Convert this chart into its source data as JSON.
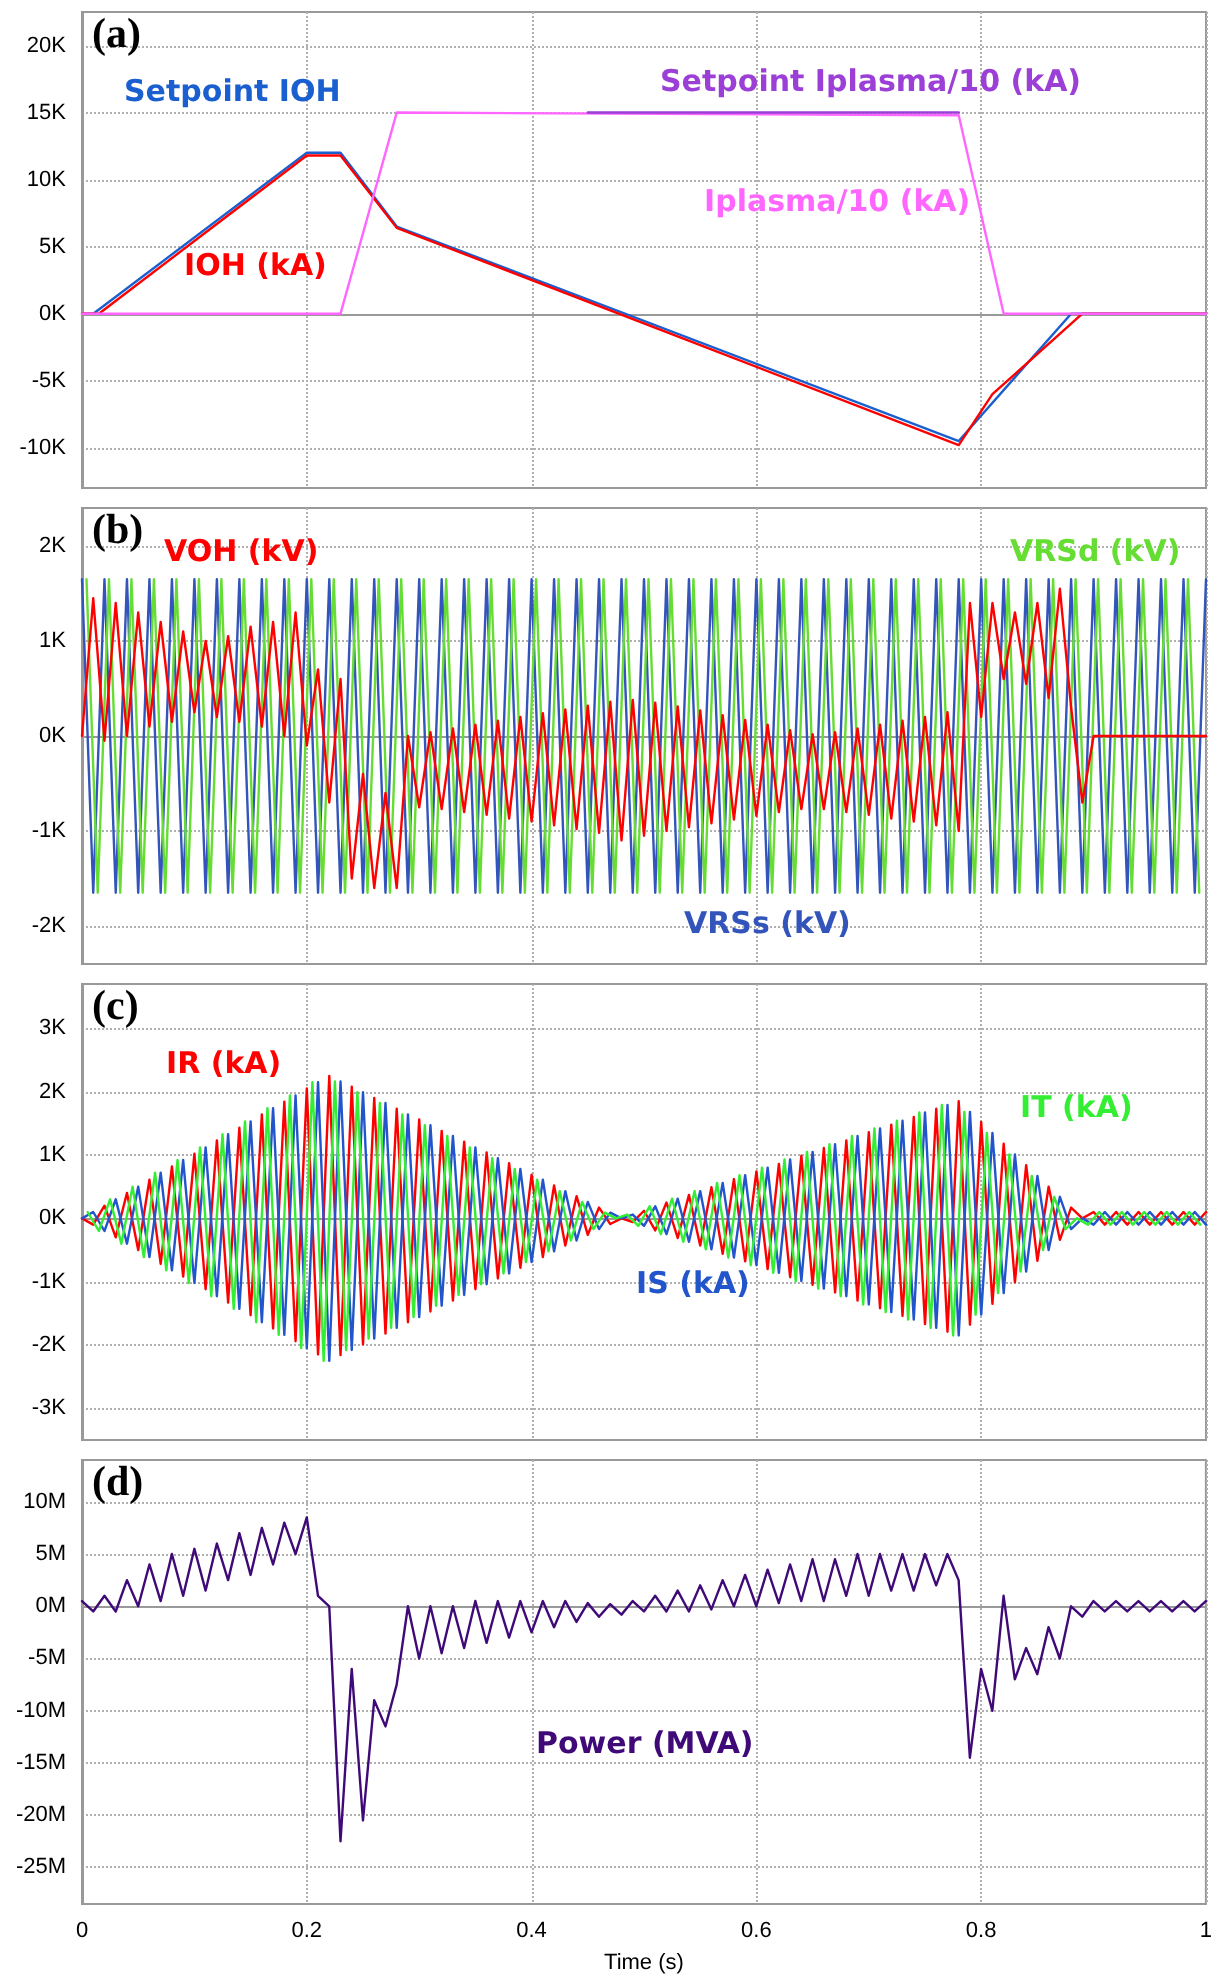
{
  "chart_data": [
    {
      "type": "line",
      "title": "(a)",
      "tick_labels": "y",
      "grid": true,
      "xlim": [
        0,
        1
      ],
      "xticks": [
        0,
        0.2,
        0.4,
        0.6,
        0.8,
        1
      ],
      "ylim": [
        -13000,
        22500
      ],
      "yticks": [
        {
          "value": -10000,
          "label": "-10K"
        },
        {
          "value": -5000,
          "label": "-5K"
        },
        {
          "value": 0,
          "label": "0K"
        },
        {
          "value": 5000,
          "label": "5K"
        },
        {
          "value": 10000,
          "label": "10K"
        },
        {
          "value": 15000,
          "label": "15K"
        },
        {
          "value": 20000,
          "label": "20K"
        }
      ],
      "series": [
        {
          "name": "Setpoint IOH",
          "color": "#1a5fd0",
          "x": [
            0,
            0.01,
            0.2,
            0.23,
            0.28,
            0.78,
            0.88,
            1
          ],
          "values": [
            0,
            0,
            12000,
            12000,
            6500,
            -9500,
            0,
            0
          ]
        },
        {
          "name": "IOH (kA)",
          "color": "#ff0000",
          "x": [
            0,
            0.015,
            0.2,
            0.23,
            0.28,
            0.78,
            0.81,
            0.89,
            1
          ],
          "values": [
            0,
            0,
            11800,
            11800,
            6400,
            -9800,
            -6000,
            0,
            0
          ]
        },
        {
          "name": "Iplasma/10 (kA)",
          "color": "#ff66ff",
          "x": [
            0,
            0.23,
            0.28,
            0.78,
            0.82,
            1
          ],
          "values": [
            0,
            0,
            15000,
            14800,
            0,
            0
          ]
        },
        {
          "name": "Setpoint Iplasma/10 (kA)",
          "color": "#9b3fd6",
          "x": [
            0.45,
            0.78
          ],
          "values": [
            15000,
            15000
          ]
        }
      ]
    },
    {
      "type": "line",
      "title": "(b)",
      "tick_labels": "y",
      "grid": true,
      "xlim": [
        0,
        1
      ],
      "xticks": [
        0,
        0.2,
        0.4,
        0.6,
        0.8,
        1
      ],
      "ylim": [
        -2400,
        2400
      ],
      "yticks": [
        {
          "value": -2000,
          "label": "-2K"
        },
        {
          "value": -1000,
          "label": "-1K"
        },
        {
          "value": 0,
          "label": "0K"
        },
        {
          "value": 1000,
          "label": "1K"
        },
        {
          "value": 2000,
          "label": "2K"
        }
      ],
      "x": [
        0,
        0.01,
        0.02,
        0.03,
        0.04,
        0.05,
        0.06,
        0.07,
        0.08,
        0.09,
        0.1,
        0.11,
        0.12,
        0.13,
        0.14,
        0.15,
        0.16,
        0.17,
        0.18,
        0.19,
        0.2,
        0.21,
        0.22,
        0.23,
        0.24,
        0.25,
        0.26,
        0.27,
        0.28,
        0.29,
        0.3,
        0.31,
        0.32,
        0.33,
        0.34,
        0.35,
        0.36,
        0.37,
        0.38,
        0.39,
        0.4,
        0.41,
        0.42,
        0.43,
        0.44,
        0.45,
        0.46,
        0.47,
        0.48,
        0.49,
        0.5,
        0.51,
        0.52,
        0.53,
        0.54,
        0.55,
        0.56,
        0.57,
        0.58,
        0.59,
        0.6,
        0.61,
        0.62,
        0.63,
        0.64,
        0.65,
        0.66,
        0.67,
        0.68,
        0.69,
        0.7,
        0.71,
        0.72,
        0.73,
        0.74,
        0.75,
        0.76,
        0.77,
        0.78,
        0.79,
        0.8,
        0.81,
        0.82,
        0.83,
        0.84,
        0.85,
        0.86,
        0.87,
        0.88,
        0.89,
        0.9,
        0.91,
        0.92,
        0.93,
        0.94,
        0.95,
        0.96,
        0.97,
        0.98,
        0.99,
        1
      ],
      "series": [
        {
          "name": "VRSs (kV)",
          "color": "#3355bb",
          "values": [
            1650,
            -1650,
            1650,
            -1650,
            1650,
            -1650,
            1650,
            -1650,
            1650,
            -1650,
            1650,
            -1650,
            1650,
            -1650,
            1650,
            -1650,
            1650,
            -1650,
            1650,
            -1650,
            1650,
            -1650,
            1650,
            -1650,
            1650,
            -1650,
            1650,
            -1650,
            1650,
            -1650,
            1650,
            -1650,
            1650,
            -1650,
            1650,
            -1650,
            1650,
            -1650,
            1650,
            -1650,
            1650,
            -1650,
            1650,
            -1650,
            1650,
            -1650,
            1650,
            -1650,
            1650,
            -1650,
            1650,
            -1650,
            1650,
            -1650,
            1650,
            -1650,
            1650,
            -1650,
            1650,
            -1650,
            1650,
            -1650,
            1650,
            -1650,
            1650,
            -1650,
            1650,
            -1650,
            1650,
            -1650,
            1650,
            -1650,
            1650,
            -1650,
            1650,
            -1650,
            1650,
            -1650,
            1650,
            -1650,
            1650,
            -1650,
            1650,
            -1650,
            1650,
            -1650,
            1650,
            -1650,
            1650,
            -1650,
            1650,
            -1650,
            1650,
            -1650,
            1650,
            -1650,
            1650,
            -1650,
            1650,
            -1650,
            1650
          ]
        },
        {
          "name": "VRSd (kV)",
          "color": "#66dd33",
          "x": [
            0.004,
            0.014,
            0.024,
            0.034,
            0.044,
            0.054,
            0.064,
            0.074,
            0.084,
            0.094,
            0.104,
            0.114,
            0.124,
            0.134,
            0.144,
            0.154,
            0.164,
            0.174,
            0.184,
            0.194,
            0.204,
            0.214,
            0.224,
            0.234,
            0.244,
            0.254,
            0.264,
            0.274,
            0.284,
            0.294,
            0.304,
            0.314,
            0.324,
            0.334,
            0.344,
            0.354,
            0.364,
            0.374,
            0.384,
            0.394,
            0.404,
            0.414,
            0.424,
            0.434,
            0.444,
            0.454,
            0.464,
            0.474,
            0.484,
            0.494,
            0.504,
            0.514,
            0.524,
            0.534,
            0.544,
            0.554,
            0.564,
            0.574,
            0.584,
            0.594,
            0.604,
            0.614,
            0.624,
            0.634,
            0.644,
            0.654,
            0.664,
            0.674,
            0.684,
            0.694,
            0.704,
            0.714,
            0.724,
            0.734,
            0.744,
            0.754,
            0.764,
            0.774,
            0.784,
            0.794,
            0.804,
            0.814,
            0.824,
            0.834,
            0.844,
            0.854,
            0.864,
            0.874,
            0.884,
            0.894,
            0.904,
            0.914,
            0.924,
            0.934,
            0.944,
            0.954,
            0.964,
            0.974,
            0.984,
            0.994
          ],
          "values": [
            1650,
            -1650,
            1650,
            -1650,
            1650,
            -1650,
            1650,
            -1650,
            1650,
            -1650,
            1650,
            -1650,
            1650,
            -1650,
            1650,
            -1650,
            1650,
            -1650,
            1650,
            -1650,
            1650,
            -1650,
            1650,
            -1650,
            1650,
            -1650,
            1650,
            -1650,
            1650,
            -1650,
            1650,
            -1650,
            1650,
            -1650,
            1650,
            -1650,
            1650,
            -1650,
            1650,
            -1650,
            1650,
            -1650,
            1650,
            -1650,
            1650,
            -1650,
            1650,
            -1650,
            1650,
            -1650,
            1650,
            -1650,
            1650,
            -1650,
            1650,
            -1650,
            1650,
            -1650,
            1650,
            -1650,
            1650,
            -1650,
            1650,
            -1650,
            1650,
            -1650,
            1650,
            -1650,
            1650,
            -1650,
            1650,
            -1650,
            1650,
            -1650,
            1650,
            -1650,
            1650,
            -1650,
            1650,
            -1650,
            1650,
            -1650,
            1650,
            -1650,
            1650,
            -1650,
            1650,
            -1650,
            1650,
            -1650,
            1650,
            -1650,
            1650,
            -1650,
            1650,
            -1650,
            1650,
            -1650,
            1650,
            -1650
          ]
        },
        {
          "name": "VOH (kV)",
          "color": "#ff0000",
          "values": [
            0,
            1450,
            -50,
            1400,
            0,
            1300,
            100,
            1200,
            150,
            1100,
            250,
            1000,
            200,
            1050,
            150,
            1150,
            100,
            1200,
            0,
            1300,
            -100,
            700,
            -700,
            600,
            -1500,
            -400,
            -1600,
            -600,
            -1600,
            0,
            -750,
            40,
            -770,
            80,
            -800,
            120,
            -830,
            160,
            -870,
            200,
            -900,
            240,
            -940,
            280,
            -980,
            320,
            -1020,
            360,
            -1100,
            380,
            -1050,
            350,
            -1000,
            310,
            -960,
            270,
            -920,
            220,
            -880,
            170,
            -840,
            120,
            -800,
            60,
            -770,
            20,
            -770,
            40,
            -800,
            80,
            -830,
            120,
            -870,
            160,
            -900,
            200,
            -940,
            250,
            -1000,
            1400,
            200,
            1400,
            600,
            1300,
            550,
            1400,
            400,
            1550,
            300,
            -700,
            0,
            0,
            0,
            0,
            0,
            0,
            0,
            0,
            0,
            0,
            0
          ]
        }
      ]
    },
    {
      "type": "line",
      "title": "(c)",
      "tick_labels": "y",
      "grid": true,
      "xlim": [
        0,
        1
      ],
      "xticks": [
        0,
        0.2,
        0.4,
        0.6,
        0.8,
        1
      ],
      "ylim": [
        -3500,
        3700
      ],
      "yticks": [
        {
          "value": -3000,
          "label": "-3K"
        },
        {
          "value": -2000,
          "label": "-2K"
        },
        {
          "value": -1000,
          "label": "-1K"
        },
        {
          "value": 0,
          "label": "0K"
        },
        {
          "value": 1000,
          "label": "1K"
        },
        {
          "value": 2000,
          "label": "2K"
        },
        {
          "value": 3000,
          "label": "3K"
        }
      ],
      "x": [
        0,
        0.01,
        0.02,
        0.03,
        0.04,
        0.05,
        0.06,
        0.07,
        0.08,
        0.09,
        0.1,
        0.11,
        0.12,
        0.13,
        0.14,
        0.15,
        0.16,
        0.17,
        0.18,
        0.19,
        0.2,
        0.21,
        0.22,
        0.23,
        0.24,
        0.25,
        0.26,
        0.27,
        0.28,
        0.29,
        0.3,
        0.31,
        0.32,
        0.33,
        0.34,
        0.35,
        0.36,
        0.37,
        0.38,
        0.39,
        0.4,
        0.41,
        0.42,
        0.43,
        0.44,
        0.45,
        0.46,
        0.47,
        0.48,
        0.49,
        0.5,
        0.51,
        0.52,
        0.53,
        0.54,
        0.55,
        0.56,
        0.57,
        0.58,
        0.59,
        0.6,
        0.61,
        0.62,
        0.63,
        0.64,
        0.65,
        0.66,
        0.67,
        0.68,
        0.69,
        0.7,
        0.71,
        0.72,
        0.73,
        0.74,
        0.75,
        0.76,
        0.77,
        0.78,
        0.79,
        0.8,
        0.81,
        0.82,
        0.83,
        0.84,
        0.85,
        0.86,
        0.87,
        0.88,
        0.89,
        0.9,
        0.91,
        0.92,
        0.93,
        0.94,
        0.95,
        0.96,
        0.97,
        0.98,
        0.99,
        1
      ],
      "series": [
        {
          "name": "IR (kA)",
          "color": "#ff0000",
          "values": [
            0,
            -100,
            200,
            -300,
            400,
            -500,
            610,
            -720,
            820,
            -920,
            1020,
            -1120,
            1230,
            -1330,
            1430,
            -1530,
            1640,
            -1740,
            1840,
            -1940,
            2050,
            -2150,
            2250,
            -2160,
            2080,
            -1990,
            1900,
            -1820,
            1730,
            -1640,
            1560,
            -1470,
            1380,
            -1300,
            1210,
            -1120,
            1040,
            -950,
            870,
            -780,
            690,
            -610,
            520,
            -430,
            350,
            -260,
            170,
            -90,
            0,
            -60,
            120,
            -190,
            250,
            -310,
            370,
            -430,
            490,
            -560,
            620,
            -680,
            740,
            -800,
            860,
            -930,
            990,
            -1050,
            1110,
            -1170,
            1230,
            -1300,
            1360,
            -1420,
            1480,
            -1540,
            1600,
            -1670,
            1730,
            -1790,
            1850,
            -1680,
            1520,
            -1350,
            1180,
            -1010,
            840,
            -670,
            500,
            -340,
            170,
            0,
            100,
            -100,
            100,
            -100,
            100,
            -100,
            100,
            -100,
            100,
            -100,
            100
          ]
        },
        {
          "name": "IS (kA)",
          "color": "#2255cc",
          "values": [
            0,
            100,
            -200,
            300,
            -400,
            500,
            -610,
            720,
            -820,
            920,
            -1020,
            1120,
            -1230,
            1330,
            -1430,
            1530,
            -1640,
            1740,
            -1840,
            1940,
            -2050,
            2150,
            -2250,
            2160,
            -2080,
            1990,
            -1900,
            1820,
            -1730,
            1640,
            -1560,
            1470,
            -1380,
            1300,
            -1210,
            1120,
            -1040,
            950,
            -870,
            780,
            -690,
            610,
            -520,
            430,
            -350,
            260,
            -170,
            90,
            0,
            60,
            -120,
            190,
            -250,
            310,
            -370,
            430,
            -490,
            560,
            -620,
            680,
            -740,
            800,
            -860,
            930,
            -990,
            1050,
            -1110,
            1170,
            -1230,
            1300,
            -1360,
            1420,
            -1480,
            1540,
            -1600,
            1670,
            -1730,
            1790,
            -1850,
            1680,
            -1520,
            1350,
            -1180,
            1010,
            -840,
            670,
            -500,
            340,
            -170,
            0,
            -100,
            100,
            -100,
            100,
            -100,
            100,
            -100,
            100,
            -100,
            100,
            -100
          ]
        },
        {
          "name": "IT (kA)",
          "color": "#33ee33",
          "x": [
            0.005,
            0.015,
            0.025,
            0.035,
            0.045,
            0.055,
            0.065,
            0.075,
            0.085,
            0.095,
            0.105,
            0.115,
            0.125,
            0.135,
            0.145,
            0.155,
            0.165,
            0.175,
            0.185,
            0.195,
            0.205,
            0.215,
            0.225,
            0.235,
            0.245,
            0.255,
            0.265,
            0.275,
            0.285,
            0.295,
            0.305,
            0.315,
            0.325,
            0.335,
            0.345,
            0.355,
            0.365,
            0.375,
            0.385,
            0.395,
            0.405,
            0.415,
            0.425,
            0.435,
            0.445,
            0.455,
            0.465,
            0.475,
            0.485,
            0.495,
            0.505,
            0.515,
            0.525,
            0.535,
            0.545,
            0.555,
            0.565,
            0.575,
            0.585,
            0.595,
            0.605,
            0.615,
            0.625,
            0.635,
            0.645,
            0.655,
            0.665,
            0.675,
            0.685,
            0.695,
            0.705,
            0.715,
            0.725,
            0.735,
            0.745,
            0.755,
            0.765,
            0.775,
            0.785,
            0.795,
            0.805,
            0.815,
            0.825,
            0.835,
            0.845,
            0.855,
            0.865,
            0.875,
            0.885,
            0.895,
            0.905,
            0.915,
            0.925,
            0.935,
            0.945,
            0.955,
            0.965,
            0.975,
            0.985,
            0.995
          ],
          "values": [
            100,
            -200,
            300,
            -400,
            500,
            -610,
            720,
            -820,
            920,
            -1020,
            1120,
            -1230,
            1330,
            -1430,
            1530,
            -1640,
            1740,
            -1840,
            1940,
            -2050,
            2150,
            -2250,
            2160,
            -2080,
            1990,
            -1900,
            1820,
            -1730,
            1640,
            -1560,
            1470,
            -1380,
            1300,
            -1210,
            1120,
            -1040,
            950,
            -870,
            780,
            -690,
            610,
            -520,
            430,
            -350,
            260,
            -170,
            90,
            0,
            60,
            -120,
            190,
            -250,
            310,
            -370,
            430,
            -490,
            560,
            -620,
            680,
            -740,
            800,
            -860,
            930,
            -990,
            1050,
            -1110,
            1170,
            -1230,
            1300,
            -1360,
            1420,
            -1480,
            1540,
            -1600,
            1670,
            -1730,
            1790,
            -1850,
            1680,
            -1520,
            1350,
            -1180,
            1010,
            -840,
            670,
            -500,
            340,
            -170,
            0,
            -100,
            100,
            -100,
            100,
            -100,
            100,
            -100,
            100,
            -100,
            100,
            -100
          ]
        }
      ]
    },
    {
      "type": "line",
      "title": "(d)",
      "xlabel": "Time (s)",
      "grid": true,
      "xlim": [
        0,
        1
      ],
      "xticks": [
        0,
        0.2,
        0.4,
        0.6,
        0.8,
        1
      ],
      "ylim": [
        -28500000,
        14000000
      ],
      "yticks": [
        {
          "value": -25000000,
          "label": "-25M"
        },
        {
          "value": -20000000,
          "label": "-20M"
        },
        {
          "value": -15000000,
          "label": "-15M"
        },
        {
          "value": -10000000,
          "label": "-10M"
        },
        {
          "value": -5000000,
          "label": "-5M"
        },
        {
          "value": 0,
          "label": "0M"
        },
        {
          "value": 5000000,
          "label": "5M"
        },
        {
          "value": 10000000,
          "label": "10M"
        }
      ],
      "x": [
        0,
        0.01,
        0.02,
        0.03,
        0.04,
        0.05,
        0.06,
        0.07,
        0.08,
        0.09,
        0.1,
        0.11,
        0.12,
        0.13,
        0.14,
        0.15,
        0.16,
        0.17,
        0.18,
        0.19,
        0.2,
        0.21,
        0.22,
        0.23,
        0.24,
        0.25,
        0.26,
        0.27,
        0.28,
        0.29,
        0.3,
        0.31,
        0.32,
        0.33,
        0.34,
        0.35,
        0.36,
        0.37,
        0.38,
        0.39,
        0.4,
        0.41,
        0.42,
        0.43,
        0.44,
        0.45,
        0.46,
        0.47,
        0.48,
        0.49,
        0.5,
        0.51,
        0.52,
        0.53,
        0.54,
        0.55,
        0.56,
        0.57,
        0.58,
        0.59,
        0.6,
        0.61,
        0.62,
        0.63,
        0.64,
        0.65,
        0.66,
        0.67,
        0.68,
        0.69,
        0.7,
        0.71,
        0.72,
        0.73,
        0.74,
        0.75,
        0.76,
        0.77,
        0.78,
        0.79,
        0.8,
        0.81,
        0.82,
        0.83,
        0.84,
        0.85,
        0.86,
        0.87,
        0.88,
        0.89,
        0.9,
        0.91,
        0.92,
        0.93,
        0.94,
        0.95,
        0.96,
        0.97,
        0.98,
        0.99,
        1
      ],
      "series": [
        {
          "name": "Power (MVA)",
          "color": "#3f0a78",
          "values": [
            500000,
            -500000,
            1000000,
            -500000,
            2500000,
            0,
            4000000,
            500000,
            5000000,
            1000000,
            5500000,
            1500000,
            6000000,
            2500000,
            7000000,
            3000000,
            7500000,
            4000000,
            8000000,
            5000000,
            8500000,
            1000000,
            0,
            -22500000,
            -6000000,
            -20500000,
            -9000000,
            -11500000,
            -7500000,
            0,
            -5000000,
            0,
            -4500000,
            0,
            -4000000,
            500000,
            -3500000,
            500000,
            -3000000,
            500000,
            -2500000,
            500000,
            -2000000,
            500000,
            -1500000,
            300000,
            -1000000,
            200000,
            -800000,
            500000,
            -500000,
            1000000,
            -500000,
            1500000,
            -500000,
            2000000,
            -300000,
            2500000,
            0,
            3000000,
            0,
            3500000,
            300000,
            4000000,
            500000,
            4500000,
            500000,
            4500000,
            1000000,
            5000000,
            1000000,
            5000000,
            1500000,
            5000000,
            1500000,
            5000000,
            2000000,
            5000000,
            2500000,
            -14500000,
            -6000000,
            -10000000,
            1000000,
            -7000000,
            -4000000,
            -6500000,
            -2000000,
            -5000000,
            0,
            -1000000,
            500000,
            -500000,
            500000,
            -500000,
            500000,
            -500000,
            500000,
            -500000,
            500000,
            -500000,
            500000
          ]
        }
      ]
    }
  ]
}
